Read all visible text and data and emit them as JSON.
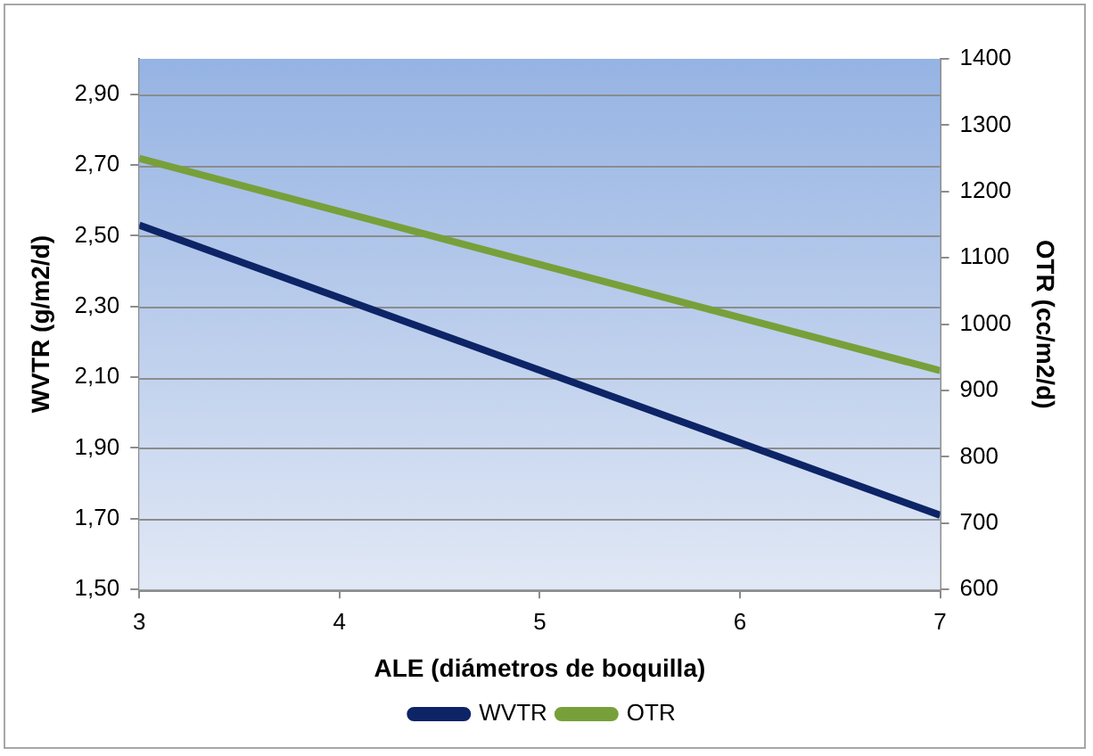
{
  "chart_data": {
    "type": "line",
    "xlabel": "ALE (diámetros de boquilla)",
    "ylabel": "WVTR (g/m2/d)",
    "y2label": "OTR (cc/m2/d)",
    "x": [
      3,
      7
    ],
    "xlim": [
      3,
      7
    ],
    "xticks": [
      3,
      4,
      5,
      6,
      7
    ],
    "ylim": [
      1.5,
      3.0
    ],
    "yticks": [
      {
        "value": 1.5,
        "label": "1,50"
      },
      {
        "value": 1.7,
        "label": "1,70"
      },
      {
        "value": 1.9,
        "label": "1,90"
      },
      {
        "value": 2.1,
        "label": "2,10"
      },
      {
        "value": 2.3,
        "label": "2,30"
      },
      {
        "value": 2.5,
        "label": "2,50"
      },
      {
        "value": 2.7,
        "label": "2,70"
      },
      {
        "value": 2.9,
        "label": "2,90"
      }
    ],
    "y2lim": [
      600,
      1400
    ],
    "y2ticks": [
      600,
      700,
      800,
      900,
      1000,
      1100,
      1200,
      1300,
      1400
    ],
    "series": [
      {
        "name": "WVTR",
        "color": "#0d2466",
        "values": [
          2.53,
          1.71
        ]
      },
      {
        "name": "OTR",
        "color": "#77a03a",
        "values": [
          1250,
          930
        ],
        "axis": "y2"
      }
    ],
    "grid": "y",
    "legend": "bottom",
    "marker": "none",
    "line_style": "solid"
  }
}
